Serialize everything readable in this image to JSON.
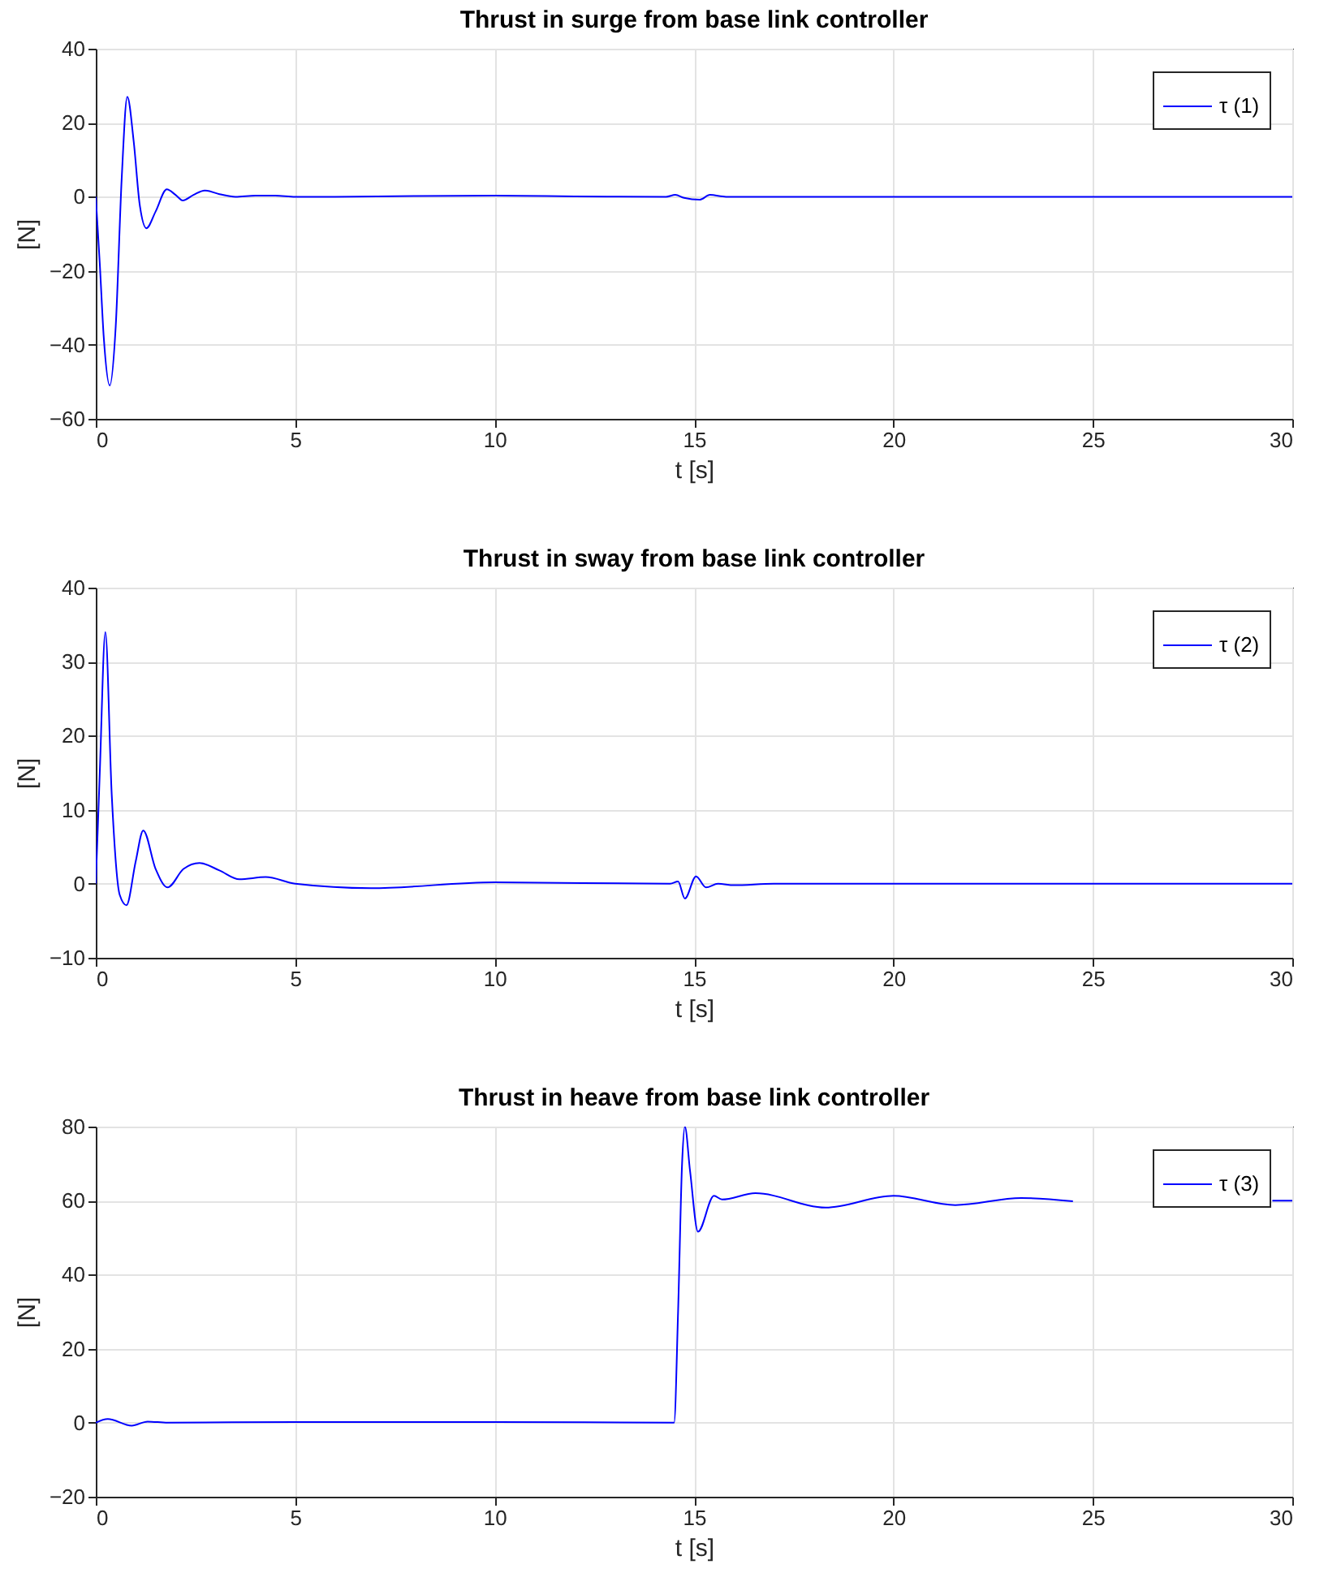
{
  "chart_data": [
    {
      "type": "line",
      "title": "Thrust in surge from base link controller",
      "xlabel": "t [s]",
      "ylabel": "[N]",
      "x": [
        0,
        0.1,
        0.2,
        0.35,
        0.5,
        0.65,
        0.79,
        0.95,
        1.1,
        1.27,
        1.5,
        1.78,
        2.0,
        2.18,
        2.45,
        2.73,
        3.1,
        3.5,
        4.0,
        4.5,
        5,
        6,
        8,
        10,
        12,
        14.3,
        14.53,
        14.75,
        15.14,
        15.4,
        15.8,
        16.5,
        20,
        25,
        30
      ],
      "series": [
        {
          "name": "τ (1)",
          "color": "#0000ff",
          "values": [
            0,
            -18,
            -38,
            -51,
            -35,
            5,
            27,
            15,
            -2,
            -8.5,
            -4,
            2,
            0.5,
            -1,
            0.5,
            1.7,
            0.7,
            0,
            0.3,
            0.3,
            0,
            0,
            0.2,
            0.3,
            0.1,
            0,
            0.5,
            -0.3,
            -0.8,
            0.5,
            0,
            0,
            0,
            0,
            0
          ]
        }
      ],
      "xlim": [
        0,
        30
      ],
      "xticks": [
        0,
        5,
        10,
        15,
        20,
        25,
        30
      ],
      "ylim": [
        -60,
        40
      ],
      "yticks": [
        -60,
        -40,
        -20,
        0,
        20,
        40
      ],
      "grid": true,
      "legend": "top right"
    },
    {
      "type": "line",
      "title": "Thrust in sway from base link controller",
      "xlabel": "t [s]",
      "ylabel": "[N]",
      "x": [
        0,
        0.1,
        0.24,
        0.4,
        0.6,
        0.77,
        1.0,
        1.19,
        1.5,
        1.8,
        2.2,
        2.6,
        3.1,
        3.6,
        4.26,
        5,
        6.9,
        10,
        14.4,
        14.6,
        14.77,
        15.05,
        15.3,
        15.6,
        16,
        17,
        20,
        25,
        30
      ],
      "series": [
        {
          "name": "τ (2)",
          "color": "#0000ff",
          "values": [
            0,
            15,
            34,
            12,
            -1.5,
            -2.9,
            3,
            7.2,
            2,
            -0.5,
            2,
            2.8,
            1.8,
            0.6,
            0.9,
            0,
            -0.6,
            0.2,
            0,
            0.3,
            -2,
            1,
            -0.5,
            0,
            -0.2,
            0,
            0,
            0,
            0
          ]
        }
      ],
      "xlim": [
        0,
        30
      ],
      "xticks": [
        0,
        5,
        10,
        15,
        20,
        25,
        30
      ],
      "ylim": [
        -10,
        40
      ],
      "yticks": [
        -10,
        0,
        10,
        20,
        30,
        40
      ],
      "grid": true,
      "legend": "top right"
    },
    {
      "type": "line",
      "title": "Thrust in heave from base link controller",
      "xlabel": "t [s]",
      "ylabel": "[N]",
      "x": [
        0,
        0.3,
        0.9,
        1.3,
        1.8,
        5,
        10,
        14.5,
        14.6,
        14.7,
        14.77,
        14.9,
        15.1,
        15.5,
        15.7,
        16.54,
        18.3,
        20,
        21.55,
        23.2,
        24.5,
        24.7,
        29.5,
        30
      ],
      "series": [
        {
          "name": "τ (3)",
          "color": "#0000ff",
          "values": [
            0,
            1,
            -0.8,
            0.3,
            0,
            0.2,
            0.2,
            0,
            30,
            70,
            80,
            68,
            51.6,
            61.3,
            60.3,
            62,
            58.1,
            61.3,
            58.8,
            60.7,
            59.8,
            null,
            60,
            60
          ]
        }
      ],
      "xlim": [
        0,
        30
      ],
      "xticks": [
        0,
        5,
        10,
        15,
        20,
        25,
        30
      ],
      "ylim": [
        -20,
        80
      ],
      "yticks": [
        -20,
        0,
        20,
        40,
        60,
        80
      ],
      "grid": true,
      "legend": "top right"
    }
  ]
}
